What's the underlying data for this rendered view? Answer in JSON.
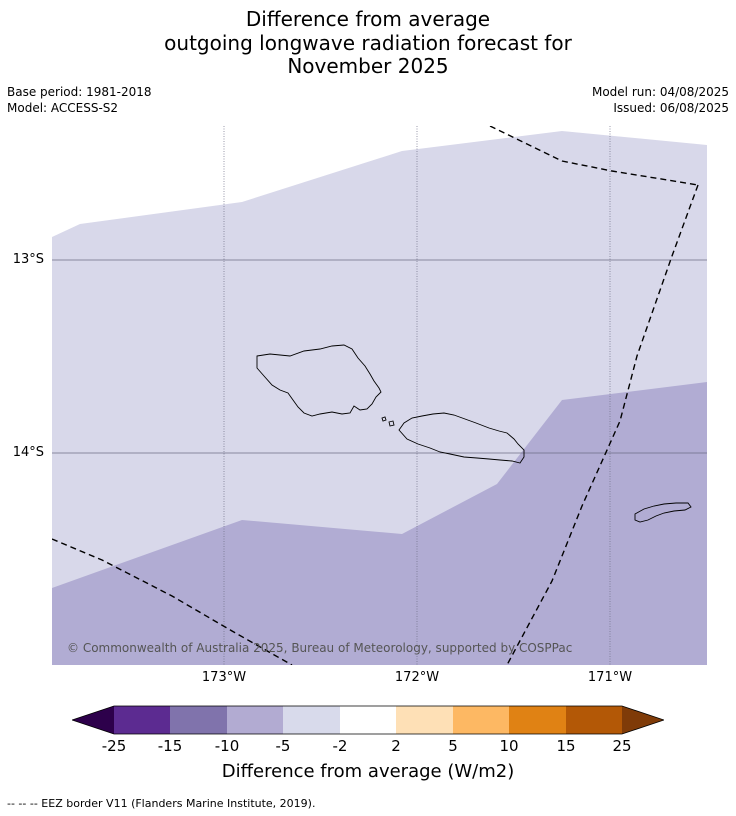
{
  "title": {
    "line1": "Difference from average",
    "line2": "outgoing longwave radiation forecast for",
    "line3": "November 2025"
  },
  "meta": {
    "base_period": "Base period: 1981-2018",
    "model": "Model: ACCESS-S2",
    "model_run": "Model run: 04/08/2025",
    "issued": "Issued: 06/08/2025"
  },
  "map": {
    "lat_labels": [
      "13°S",
      "14°S"
    ],
    "lon_labels": [
      "173°W",
      "172°W",
      "171°W"
    ],
    "copyright": "© Commonwealth of Australia 2025, Bureau of Meteorology, supported by COSPPac",
    "fill_colors": {
      "light": "#d8d8ea",
      "medium": "#b1acd3"
    }
  },
  "colorbar": {
    "label": "Difference from average (W/m2)",
    "ticks": [
      "-25",
      "-15",
      "-10",
      "-5",
      "-2",
      "2",
      "5",
      "10",
      "15",
      "25"
    ],
    "colors": [
      "#2d004b",
      "#5c2b91",
      "#8073ac",
      "#b2abd2",
      "#d8daeb",
      "#ffffff",
      "#fee0b6",
      "#fdb863",
      "#e08214",
      "#b35806",
      "#7f3b08"
    ]
  },
  "legend": {
    "eez_text": "--  --  -- EEZ border V11 (Flanders Marine Institute, 2019)."
  }
}
